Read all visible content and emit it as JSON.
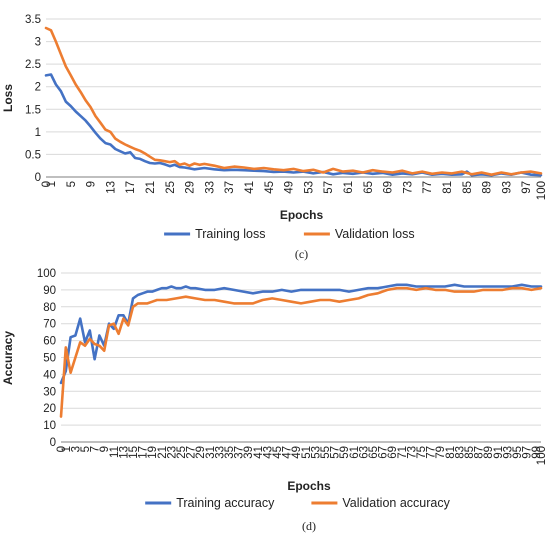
{
  "chart_data": [
    {
      "type": "line",
      "caption": "(c)",
      "xlabel": "Epochs",
      "ylabel": "Loss",
      "ylim": [
        0,
        3.5
      ],
      "yticks": [
        0,
        0.5,
        1,
        1.5,
        2,
        2.5,
        3,
        3.5
      ],
      "yticklabels": [
        "0",
        "0.5",
        "1",
        "1.5",
        "2",
        "2.5",
        "3",
        "3.5"
      ],
      "xlim": [
        0,
        100
      ],
      "xticks": [
        0,
        1,
        5,
        9,
        13,
        17,
        21,
        25,
        29,
        33,
        37,
        41,
        45,
        49,
        53,
        57,
        61,
        65,
        69,
        73,
        77,
        81,
        85,
        89,
        93,
        97,
        100
      ],
      "xticklabels": [
        "0",
        "1",
        "5",
        "9",
        "13",
        "17",
        "21",
        "25",
        "29",
        "33",
        "37",
        "41",
        "45",
        "49",
        "53",
        "57",
        "61",
        "65",
        "69",
        "73",
        "77",
        "81",
        "85",
        "89",
        "93",
        "97",
        "100"
      ],
      "grid": "horizontal",
      "legend": "bottom",
      "series": [
        {
          "name": "Training loss",
          "color": "#4472c4",
          "x": [
            0,
            1,
            2,
            3,
            4,
            5,
            6,
            7,
            8,
            9,
            10,
            11,
            12,
            13,
            14,
            15,
            16,
            17,
            18,
            19,
            20,
            21,
            22,
            23,
            24,
            25,
            26,
            27,
            28,
            29,
            30,
            32,
            34,
            36,
            38,
            40,
            42,
            44,
            46,
            48,
            50,
            52,
            54,
            56,
            58,
            60,
            62,
            64,
            66,
            68,
            70,
            72,
            74,
            76,
            78,
            80,
            82,
            84,
            85,
            86,
            88,
            90,
            92,
            94,
            96,
            98,
            100
          ],
          "values": [
            2.25,
            2.27,
            2.05,
            1.9,
            1.67,
            1.57,
            1.45,
            1.35,
            1.25,
            1.12,
            0.98,
            0.85,
            0.75,
            0.72,
            0.62,
            0.57,
            0.52,
            0.55,
            0.42,
            0.4,
            0.35,
            0.31,
            0.3,
            0.31,
            0.28,
            0.24,
            0.27,
            0.22,
            0.21,
            0.19,
            0.17,
            0.2,
            0.17,
            0.15,
            0.16,
            0.15,
            0.14,
            0.13,
            0.11,
            0.12,
            0.1,
            0.12,
            0.08,
            0.11,
            0.06,
            0.09,
            0.07,
            0.1,
            0.07,
            0.09,
            0.05,
            0.08,
            0.06,
            0.1,
            0.05,
            0.07,
            0.05,
            0.06,
            0.12,
            0.04,
            0.06,
            0.04,
            0.08,
            0.05,
            0.1,
            0.05,
            0.04
          ]
        },
        {
          "name": "Validation loss",
          "color": "#ed7d31",
          "x": [
            0,
            1,
            2,
            3,
            4,
            5,
            6,
            7,
            8,
            9,
            10,
            11,
            12,
            13,
            14,
            15,
            16,
            17,
            18,
            19,
            20,
            21,
            22,
            23,
            24,
            25,
            26,
            27,
            28,
            29,
            30,
            31,
            32,
            34,
            36,
            38,
            40,
            42,
            44,
            46,
            48,
            50,
            52,
            54,
            56,
            58,
            60,
            62,
            64,
            66,
            68,
            70,
            72,
            74,
            76,
            78,
            80,
            82,
            84,
            86,
            88,
            90,
            92,
            94,
            96,
            98,
            100
          ],
          "values": [
            3.3,
            3.25,
            3.0,
            2.72,
            2.45,
            2.25,
            2.05,
            1.88,
            1.7,
            1.55,
            1.35,
            1.2,
            1.05,
            1.0,
            0.85,
            0.78,
            0.72,
            0.67,
            0.62,
            0.58,
            0.52,
            0.45,
            0.38,
            0.37,
            0.35,
            0.33,
            0.35,
            0.27,
            0.3,
            0.25,
            0.3,
            0.27,
            0.29,
            0.25,
            0.2,
            0.23,
            0.21,
            0.18,
            0.2,
            0.17,
            0.15,
            0.18,
            0.13,
            0.16,
            0.1,
            0.18,
            0.12,
            0.14,
            0.1,
            0.15,
            0.12,
            0.1,
            0.14,
            0.08,
            0.12,
            0.07,
            0.1,
            0.08,
            0.12,
            0.06,
            0.1,
            0.05,
            0.1,
            0.06,
            0.1,
            0.12,
            0.08
          ]
        }
      ]
    },
    {
      "type": "line",
      "caption": "(d)",
      "xlabel": "Epochs",
      "ylabel": "Accuracy",
      "ylim": [
        0,
        100
      ],
      "yticks": [
        0,
        10,
        20,
        30,
        40,
        50,
        60,
        70,
        80,
        90,
        100
      ],
      "yticklabels": [
        "0",
        "10",
        "20",
        "30",
        "40",
        "50",
        "60",
        "70",
        "80",
        "90",
        "100"
      ],
      "xlim": [
        0,
        100
      ],
      "xticks": [
        0,
        1,
        3,
        5,
        7,
        9,
        11,
        13,
        15,
        17,
        19,
        21,
        23,
        25,
        27,
        29,
        31,
        33,
        35,
        37,
        39,
        41,
        43,
        45,
        47,
        49,
        51,
        53,
        55,
        57,
        59,
        61,
        63,
        65,
        67,
        69,
        71,
        73,
        75,
        77,
        79,
        81,
        83,
        85,
        87,
        89,
        91,
        93,
        95,
        97,
        99,
        100
      ],
      "xticklabels": [
        "0",
        "1",
        "3",
        "5",
        "7",
        "9",
        "11",
        "13",
        "15",
        "17",
        "19",
        "21",
        "23",
        "25",
        "27",
        "29",
        "31",
        "33",
        "35",
        "37",
        "39",
        "41",
        "43",
        "45",
        "47",
        "49",
        "51",
        "53",
        "55",
        "57",
        "59",
        "61",
        "63",
        "65",
        "67",
        "69",
        "71",
        "73",
        "75",
        "77",
        "79",
        "81",
        "83",
        "85",
        "87",
        "89",
        "91",
        "93",
        "95",
        "97",
        "99",
        "100"
      ],
      "grid": "horizontal",
      "legend": "bottom",
      "series": [
        {
          "name": "Training accuracy",
          "color": "#4472c4",
          "x": [
            0,
            1,
            2,
            3,
            4,
            5,
            6,
            7,
            8,
            9,
            10,
            11,
            12,
            13,
            14,
            15,
            16,
            17,
            18,
            19,
            20,
            21,
            22,
            23,
            24,
            25,
            26,
            27,
            28,
            30,
            32,
            34,
            36,
            38,
            40,
            42,
            44,
            46,
            48,
            50,
            52,
            54,
            56,
            58,
            60,
            62,
            64,
            66,
            68,
            70,
            72,
            74,
            76,
            78,
            80,
            82,
            84,
            86,
            88,
            90,
            92,
            94,
            96,
            98,
            100
          ],
          "values": [
            35,
            42,
            62,
            63,
            73,
            59,
            66,
            49,
            63,
            57,
            70,
            67,
            75,
            75,
            70,
            85,
            87,
            88,
            89,
            89,
            90,
            91,
            91,
            92,
            91,
            91,
            92,
            91,
            91,
            90,
            90,
            91,
            90,
            89,
            88,
            89,
            89,
            90,
            89,
            90,
            90,
            90,
            90,
            90,
            89,
            90,
            91,
            91,
            92,
            93,
            93,
            92,
            92,
            92,
            92,
            93,
            92,
            92,
            92,
            92,
            92,
            92,
            93,
            92,
            92
          ]
        },
        {
          "name": "Validation accuracy",
          "color": "#ed7d31",
          "x": [
            0,
            1,
            2,
            3,
            4,
            5,
            6,
            7,
            8,
            9,
            10,
            11,
            12,
            13,
            14,
            15,
            16,
            17,
            18,
            19,
            20,
            22,
            24,
            26,
            28,
            30,
            32,
            34,
            36,
            38,
            40,
            42,
            44,
            46,
            48,
            50,
            52,
            54,
            56,
            58,
            60,
            62,
            64,
            66,
            68,
            70,
            72,
            74,
            76,
            78,
            80,
            82,
            84,
            86,
            88,
            90,
            92,
            94,
            96,
            98,
            100
          ],
          "values": [
            15,
            56,
            41,
            50,
            59,
            57,
            61,
            58,
            57,
            54,
            69,
            70,
            64,
            73,
            69,
            80,
            82,
            82,
            82,
            83,
            84,
            84,
            85,
            86,
            85,
            84,
            84,
            83,
            82,
            82,
            82,
            84,
            85,
            84,
            83,
            82,
            83,
            84,
            84,
            83,
            84,
            85,
            87,
            88,
            90,
            91,
            91,
            90,
            91,
            90,
            90,
            89,
            89,
            89,
            90,
            90,
            90,
            91,
            91,
            90,
            91
          ]
        }
      ]
    }
  ]
}
